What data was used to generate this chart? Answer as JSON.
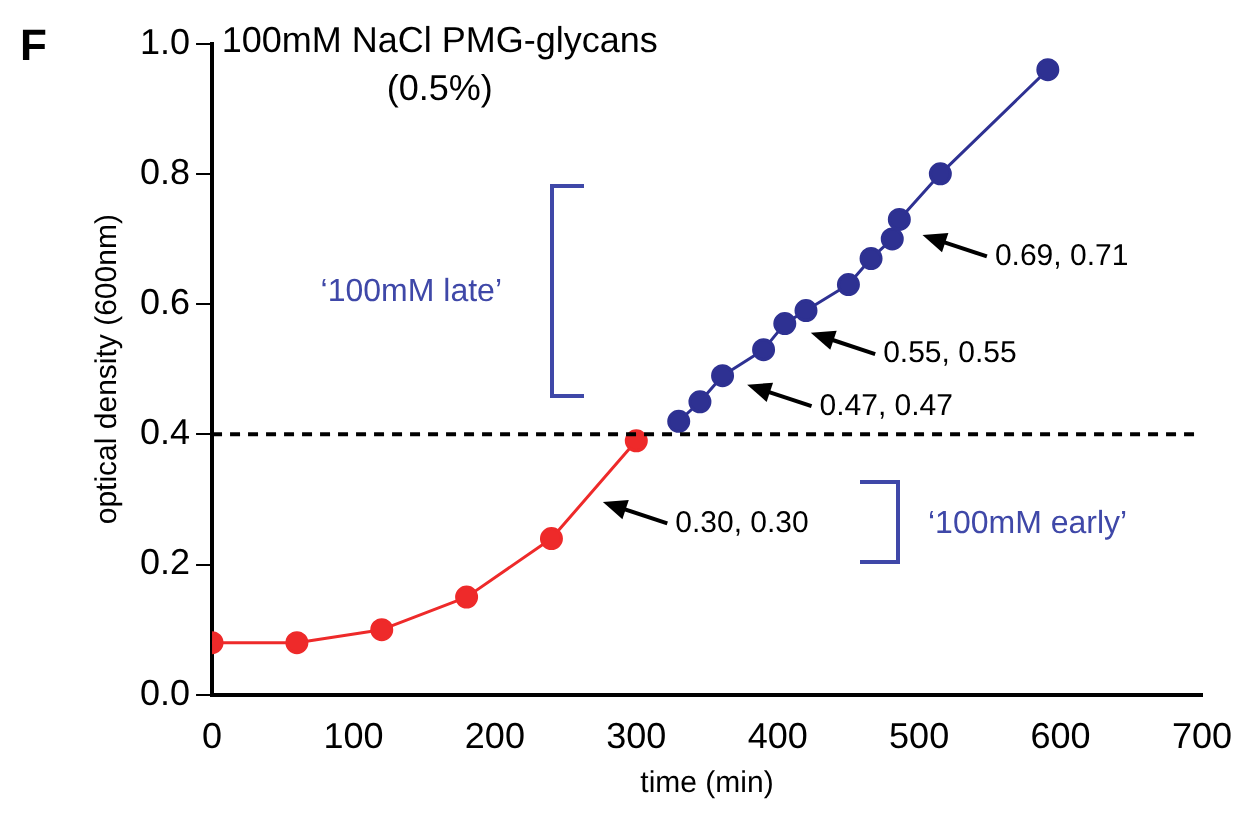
{
  "chart_data": {
    "type": "line",
    "title": "100mM NaCl PMG-glycans",
    "subtitle": "(0.5%)",
    "xlabel": "time (min)",
    "ylabel": "optical density (600nm)",
    "series": [
      {
        "color": "#ee2a2a",
        "x": [
          0,
          60,
          120,
          180,
          240,
          300
        ],
        "values": [
          0.08,
          0.08,
          0.1,
          0.15,
          0.24,
          0.39
        ]
      },
      {
        "color": "#2e3192",
        "x": [
          330,
          345,
          361,
          390,
          405,
          420,
          450,
          466,
          481,
          486,
          515,
          591
        ],
        "values": [
          0.42,
          0.45,
          0.49,
          0.53,
          0.57,
          0.59,
          0.63,
          0.67,
          0.7,
          0.73,
          0.8,
          0.96
        ]
      }
    ],
    "xlim": [
      0,
      700
    ],
    "xticks": [
      0,
      100,
      200,
      300,
      400,
      500,
      600,
      700
    ],
    "ylim": [
      0,
      1.0
    ],
    "yticks": [
      {
        "value": 0,
        "label": "0.0"
      },
      0.2,
      0.4,
      0.6,
      0.8,
      {
        "value": 1,
        "label": "1.0"
      }
    ],
    "ref_lines": [
      {
        "axis": "y",
        "value": 0.4,
        "color": "#000000",
        "line_style": "dashed"
      }
    ],
    "annotations": [
      "F",
      "‘100mM late’",
      "‘100mM early’",
      {
        "text": "0.30, 0.30",
        "x": 271,
        "y": 0.3
      },
      {
        "text": "0.47, 0.47",
        "x": 373,
        "y": 0.48
      },
      {
        "text": "0.55, 0.55",
        "x": 418,
        "y": 0.56
      },
      {
        "text": "0.69, 0.71",
        "x": 497,
        "y": 0.71
      }
    ],
    "marker": "circle",
    "grid": false,
    "legend": false
  }
}
